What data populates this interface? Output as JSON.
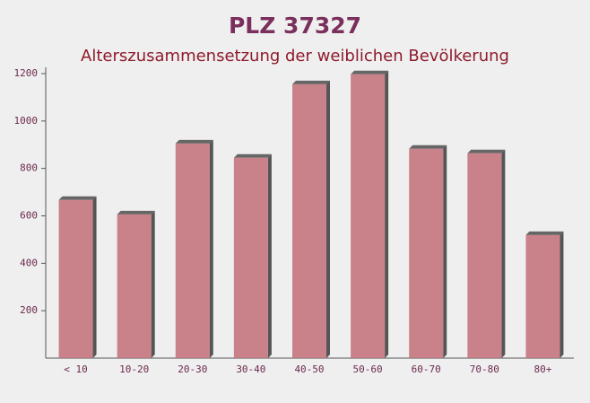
{
  "chart_data": {
    "type": "bar",
    "title": "PLZ 37327",
    "subtitle": "Alterszusammensetzung der weiblichen Bevölkerung",
    "categories": [
      "< 10",
      "10-20",
      "20-30",
      "30-40",
      "40-50",
      "50-60",
      "60-70",
      "70-80",
      "80+"
    ],
    "values": [
      667,
      606,
      905,
      845,
      1155,
      1197,
      883,
      864,
      519
    ],
    "color": "#c4757d",
    "ylim": [
      0,
      1200
    ],
    "yticks": [
      200,
      400,
      600,
      800,
      1000,
      1200
    ]
  }
}
